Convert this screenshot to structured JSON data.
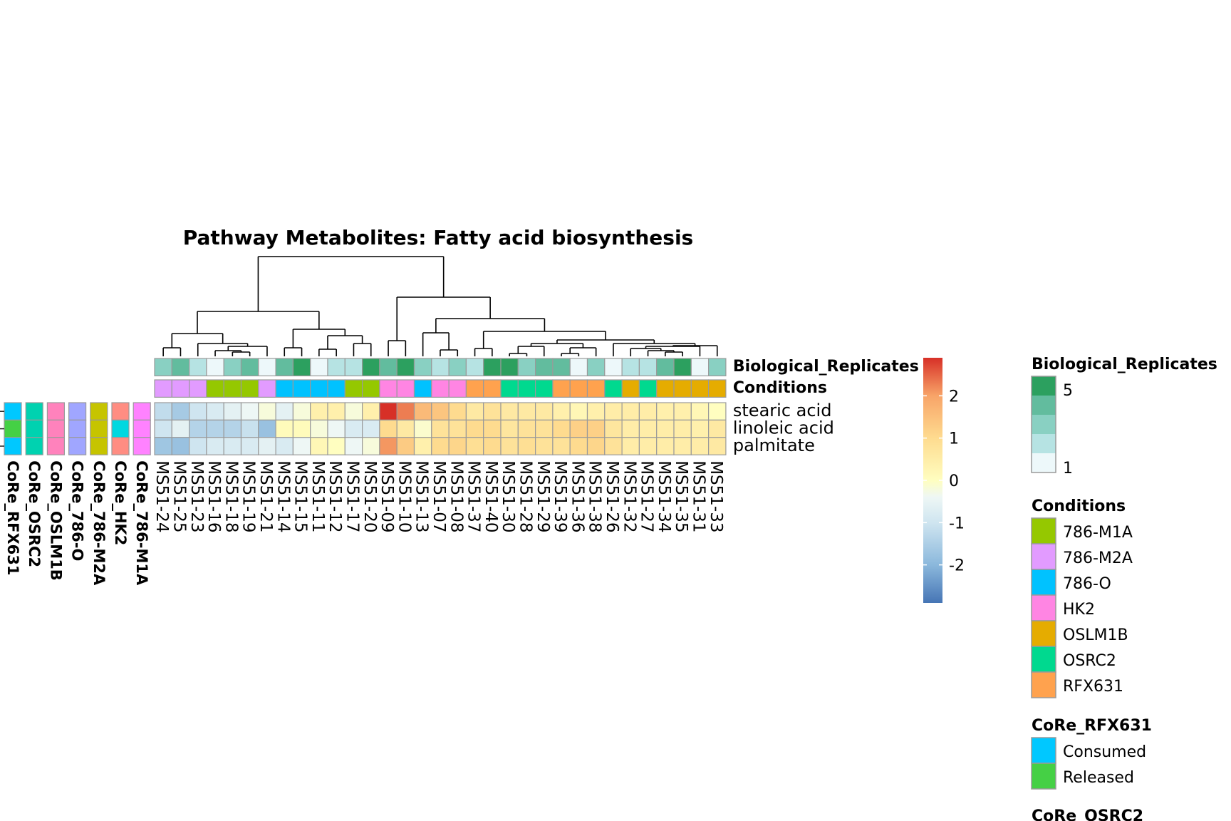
{
  "chart_data": {
    "type": "heatmap",
    "title": "Pathway  Metabolites:  Fatty acid biosynthesis",
    "columns": [
      "MS51-24",
      "MS51-25",
      "MS51-23",
      "MS51-16",
      "MS51-18",
      "MS51-19",
      "MS51-21",
      "MS51-14",
      "MS51-15",
      "MS51-11",
      "MS51-12",
      "MS51-17",
      "MS51-20",
      "MS51-09",
      "MS51-10",
      "MS51-13",
      "MS51-07",
      "MS51-08",
      "MS51-37",
      "MS51-40",
      "MS51-30",
      "MS51-28",
      "MS51-29",
      "MS51-39",
      "MS51-36",
      "MS51-38",
      "MS51-26",
      "MS51-32",
      "MS51-27",
      "MS51-34",
      "MS51-35",
      "MS51-31",
      "MS51-33"
    ],
    "rows": [
      "stearic acid",
      "linoleic acid",
      "palmitate"
    ],
    "values": [
      [
        -1.2,
        -1.6,
        -1.0,
        -0.8,
        -0.6,
        -0.4,
        -0.2,
        -0.6,
        -0.2,
        0.4,
        0.4,
        -0.2,
        0.4,
        2.9,
        2.3,
        1.6,
        1.4,
        1.0,
        0.6,
        0.8,
        0.6,
        0.6,
        0.6,
        0.4,
        0.2,
        0.4,
        0.5,
        0.5,
        0.5,
        0.4,
        0.4,
        0.2,
        0.0
      ],
      [
        -1.0,
        -0.6,
        -1.4,
        -1.4,
        -1.4,
        -1.1,
        -1.8,
        0.1,
        0.1,
        -0.2,
        -0.4,
        -0.8,
        -0.8,
        1.0,
        0.6,
        -0.1,
        0.8,
        0.8,
        1.0,
        1.0,
        0.7,
        0.8,
        0.8,
        1.0,
        1.2,
        1.2,
        0.7,
        0.5,
        0.5,
        0.5,
        0.5,
        0.4,
        0.6
      ],
      [
        -1.7,
        -1.8,
        -1.0,
        -0.8,
        -0.8,
        -0.8,
        -0.6,
        -0.8,
        -0.4,
        0.2,
        0.0,
        -0.4,
        -0.2,
        2.1,
        1.3,
        0.4,
        1.0,
        1.1,
        0.9,
        1.0,
        0.8,
        0.9,
        0.8,
        0.8,
        1.0,
        1.1,
        0.8,
        0.5,
        0.5,
        0.5,
        0.5,
        0.5,
        0.6
      ]
    ],
    "col_annotations": {
      "Biological_Replicates": [
        3,
        4,
        2,
        1,
        3,
        4,
        1,
        4,
        5,
        1,
        2,
        2,
        5,
        4,
        5,
        3,
        2,
        3,
        2,
        5,
        5,
        3,
        4,
        4,
        1,
        3,
        1,
        2,
        2,
        4,
        5,
        1,
        3
      ],
      "Conditions": [
        "786-M2A",
        "786-M2A",
        "786-M2A",
        "786-M1A",
        "786-M1A",
        "786-M1A",
        "786-M2A",
        "786-O",
        "786-O",
        "786-O",
        "786-O",
        "786-M1A",
        "786-M1A",
        "HK2",
        "HK2",
        "786-O",
        "HK2",
        "HK2",
        "RFX631",
        "RFX631",
        "OSRC2",
        "OSRC2",
        "OSRC2",
        "RFX631",
        "RFX631",
        "RFX631",
        "OSRC2",
        "OSLM1B",
        "OSRC2",
        "OSLM1B",
        "OSLM1B",
        "OSLM1B",
        "OSLM1B"
      ]
    },
    "col_annotation_labels": [
      "Biological_Replicates",
      "Conditions"
    ],
    "row_annotations": {
      "CoRe_RFX631": [
        "Consumed",
        "Released",
        "Consumed"
      ],
      "CoRe_OSRC2": [
        "Consumed",
        "Consumed",
        "Consumed"
      ],
      "CoRe_OSLM1B": [
        "Released",
        "Released",
        "Released"
      ],
      "CoRe_786-O": [
        "Consumed",
        "Consumed",
        "Consumed"
      ],
      "CoRe_786-M2A": [
        "Consumed",
        "Consumed",
        "Consumed"
      ],
      "CoRe_HK2": [
        "Released",
        "Consumed",
        "Released"
      ],
      "CoRe_786-M1A": [
        "Released",
        "Released",
        "Released"
      ]
    },
    "row_annotation_labels": [
      "CoRe_RFX631",
      "CoRe_OSRC2",
      "CoRe_OSLM1B",
      "CoRe_786-O",
      "CoRe_786-M2A",
      "CoRe_HK2",
      "CoRe_786-M1A"
    ],
    "row_annotation_colors": {
      "CoRe_RFX631": {
        "Consumed": "#00c8ff",
        "Released": "#45d045"
      },
      "CoRe_OSRC2": {
        "Consumed": "#00d2b0"
      },
      "CoRe_OSLM1B": {
        "Released": "#ff82bc"
      },
      "CoRe_786-O": {
        "Consumed": "#a0a6ff"
      },
      "CoRe_786-M2A": {
        "Consumed": "#c6c400"
      },
      "CoRe_HK2": {
        "Released": "#ff8d82",
        "Consumed": "#00d8e0"
      },
      "CoRe_786-M1A": {
        "Released": "#ff82ff"
      }
    },
    "color_scale": {
      "stops": [
        [
          -2.9,
          "#4675b5"
        ],
        [
          -2.0,
          "#8bb8dc"
        ],
        [
          -1.0,
          "#cfe5f0"
        ],
        [
          -0.4,
          "#eef7f5"
        ],
        [
          0.0,
          "#fffec0"
        ],
        [
          1.0,
          "#fedb8f"
        ],
        [
          2.0,
          "#f8a468"
        ],
        [
          2.9,
          "#d73027"
        ]
      ],
      "ticks": [
        "2",
        "1",
        "0",
        "-1",
        "-2"
      ]
    },
    "condition_colors": {
      "786-M1A": "#95c800",
      "786-M2A": "#e29bff",
      "786-O": "#00c2ff",
      "HK2": "#ff85e3",
      "OSLM1B": "#e5ac00",
      "OSRC2": "#00d98f",
      "RFX631": "#ffa24e"
    },
    "replicate_colors": {
      "1": "#edf8fa",
      "2": "#b6e3e3",
      "3": "#89d0c2",
      "4": "#62bc9e",
      "5": "#2ca05f"
    },
    "legends": {
      "biological_replicates": {
        "title": "Biological_Replicates",
        "top": "5",
        "bottom": "1"
      },
      "conditions": {
        "title": "Conditions",
        "items": [
          "786-M1A",
          "786-M2A",
          "786-O",
          "HK2",
          "OSLM1B",
          "OSRC2",
          "RFX631"
        ]
      },
      "core_rfx631": {
        "title": "CoRe_RFX631",
        "items": [
          "Consumed",
          "Released"
        ]
      },
      "core_osrc2": {
        "title": "CoRe_OSRC2"
      }
    }
  }
}
